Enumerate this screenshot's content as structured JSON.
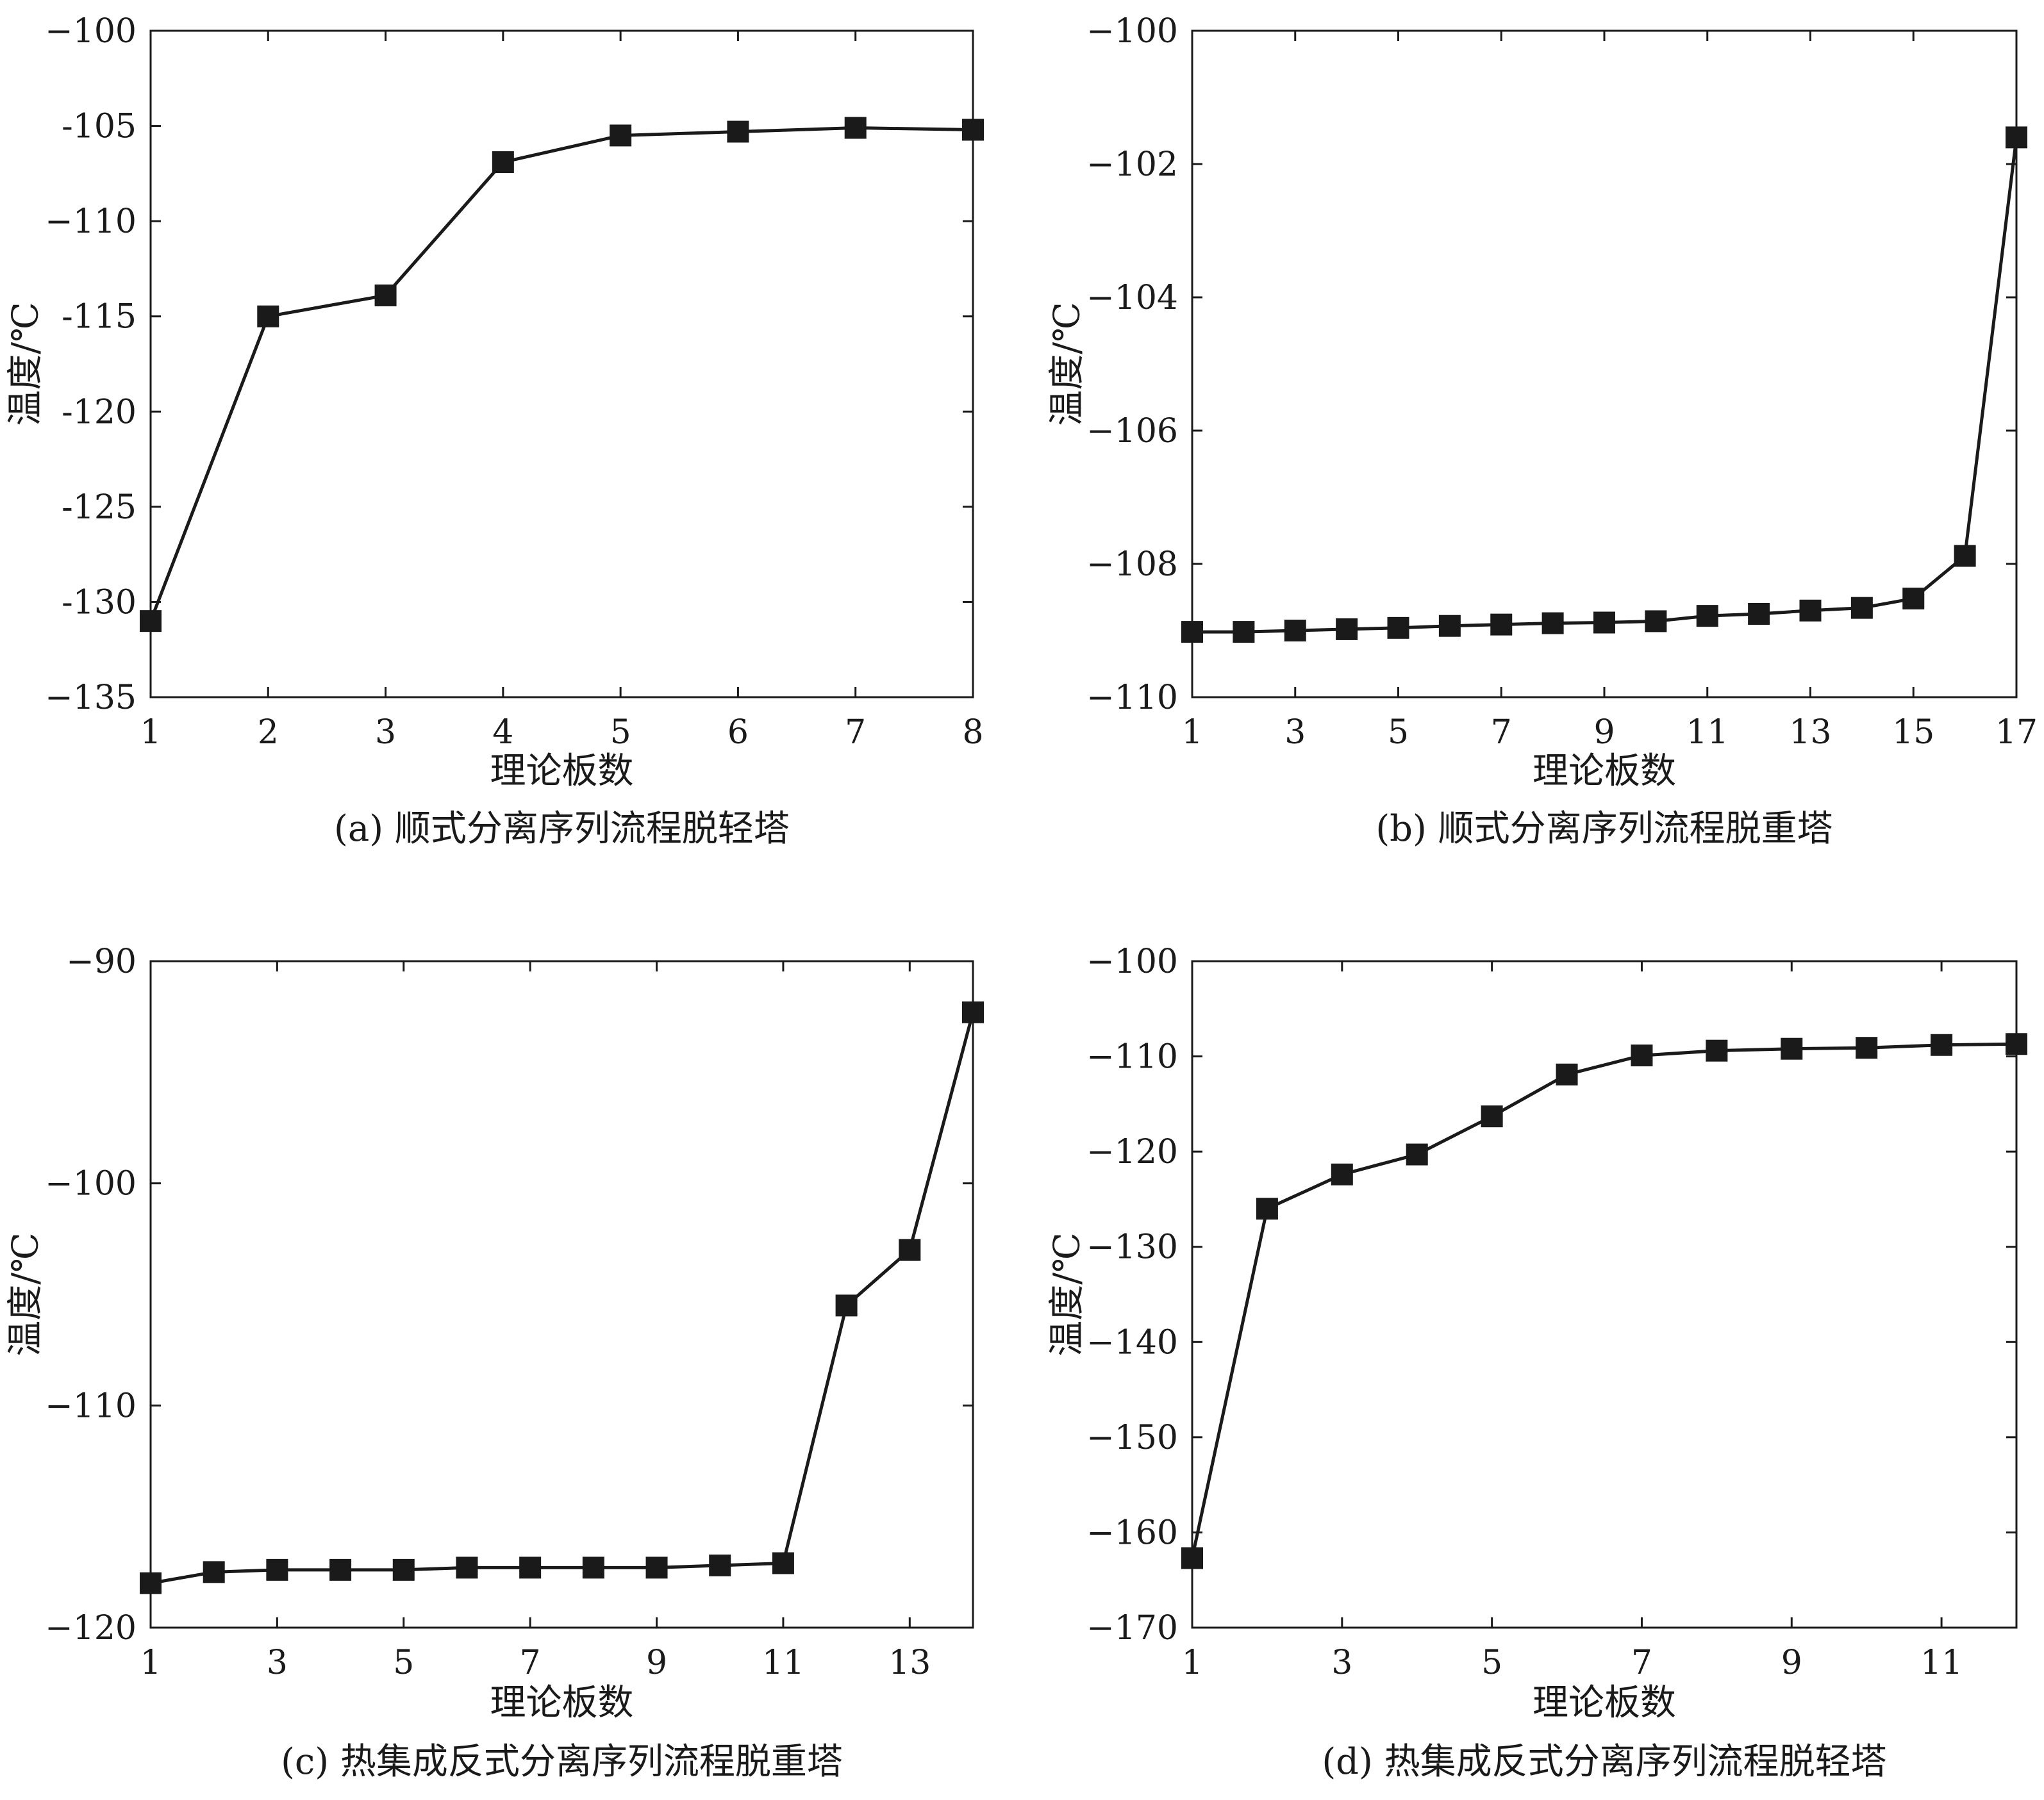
{
  "chart_data": [
    {
      "type": "line",
      "caption": "(a) 顺式分离序列流程脱轻塔",
      "xlabel": "理论板数",
      "ylabel": "温度/℃",
      "xlim": [
        1,
        8
      ],
      "ylim": [
        -135,
        -100
      ],
      "xticks": [
        1,
        2,
        3,
        4,
        5,
        6,
        7,
        8
      ],
      "xtick_labels": [
        "1",
        "2",
        "3",
        "4",
        "5",
        "6",
        "7",
        "8"
      ],
      "yticks": [
        -100,
        -105,
        -110,
        -115,
        -120,
        -125,
        -130,
        -135
      ],
      "ytick_labels": [
        "−100",
        "-105",
        "−110",
        "-115",
        "-120",
        "-125",
        "-130",
        "−135"
      ],
      "grid": false,
      "series": [
        {
          "marker": "square",
          "color": "#1a1a1a",
          "x": [
            1,
            2,
            3,
            4,
            5,
            6,
            7,
            8
          ],
          "y": [
            -131.0,
            -115.0,
            -113.9,
            -106.9,
            -105.5,
            -105.3,
            -105.1,
            -105.2
          ]
        }
      ]
    },
    {
      "type": "line",
      "caption": "(b) 顺式分离序列流程脱重塔",
      "xlabel": "理论板数",
      "ylabel": "温度/℃",
      "xlim": [
        1,
        17
      ],
      "ylim": [
        -110,
        -100
      ],
      "xticks": [
        1,
        3,
        5,
        7,
        9,
        11,
        13,
        15,
        17
      ],
      "xtick_labels": [
        "1",
        "3",
        "5",
        "7",
        "9",
        "11",
        "13",
        "15",
        "17"
      ],
      "yticks": [
        -100,
        -102,
        -104,
        -106,
        -108,
        -110
      ],
      "ytick_labels": [
        "−100",
        "−102",
        "−104",
        "−106",
        "−108",
        "−110"
      ],
      "grid": false,
      "series": [
        {
          "marker": "square",
          "color": "#1a1a1a",
          "x": [
            1,
            2,
            3,
            4,
            5,
            6,
            7,
            8,
            9,
            10,
            11,
            12,
            13,
            14,
            15,
            16,
            17
          ],
          "y": [
            -109.02,
            -109.02,
            -109.0,
            -108.98,
            -108.96,
            -108.93,
            -108.91,
            -108.89,
            -108.88,
            -108.86,
            -108.78,
            -108.75,
            -108.7,
            -108.66,
            -108.52,
            -107.88,
            -101.6
          ]
        }
      ]
    },
    {
      "type": "line",
      "caption": "(c) 热集成反式分离序列流程脱重塔",
      "xlabel": "理论板数",
      "ylabel": "温度/℃",
      "xlim": [
        1,
        14
      ],
      "ylim": [
        -120,
        -90
      ],
      "xticks": [
        1,
        3,
        5,
        7,
        9,
        11,
        13
      ],
      "xtick_labels": [
        "1",
        "3",
        "5",
        "7",
        "9",
        "11",
        "13"
      ],
      "yticks": [
        -90,
        -100,
        -110,
        -120
      ],
      "ytick_labels": [
        "−90",
        "−100",
        "−110",
        "−120"
      ],
      "grid": false,
      "series": [
        {
          "marker": "square",
          "color": "#1a1a1a",
          "x": [
            1,
            2,
            3,
            4,
            5,
            6,
            7,
            8,
            9,
            10,
            11,
            12,
            13,
            14
          ],
          "y": [
            -118.0,
            -117.5,
            -117.4,
            -117.4,
            -117.4,
            -117.3,
            -117.3,
            -117.3,
            -117.3,
            -117.2,
            -117.1,
            -105.5,
            -103.0,
            -92.3
          ]
        }
      ]
    },
    {
      "type": "line",
      "caption": "(d) 热集成反式分离序列流程脱轻塔",
      "xlabel": "理论板数",
      "ylabel": "温度/℃",
      "xlim": [
        1,
        12
      ],
      "ylim": [
        -170,
        -100
      ],
      "xticks": [
        1,
        3,
        5,
        7,
        9,
        11
      ],
      "xtick_labels": [
        "1",
        "3",
        "5",
        "7",
        "9",
        "11"
      ],
      "yticks": [
        -100,
        -110,
        -120,
        -130,
        -140,
        -150,
        -160,
        -170
      ],
      "ytick_labels": [
        "−100",
        "−110",
        "−120",
        "−130",
        "−140",
        "−150",
        "−160",
        "−170"
      ],
      "grid": false,
      "series": [
        {
          "marker": "square",
          "color": "#1a1a1a",
          "x": [
            1,
            2,
            3,
            4,
            5,
            6,
            7,
            8,
            9,
            10,
            11,
            12
          ],
          "y": [
            -162.7,
            -126.0,
            -122.4,
            -120.3,
            -116.3,
            -111.9,
            -109.9,
            -109.4,
            -109.2,
            -109.1,
            -108.8,
            -108.7
          ]
        }
      ]
    }
  ]
}
